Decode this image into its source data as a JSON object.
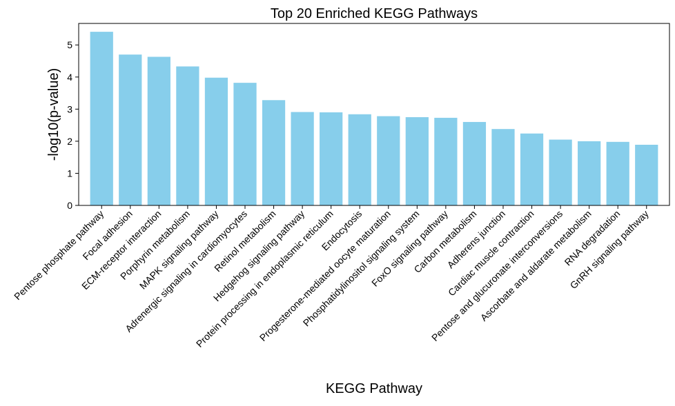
{
  "chart_data": {
    "type": "bar",
    "title": "Top 20 Enriched KEGG Pathways",
    "xlabel": "KEGG Pathway",
    "ylabel": "-log10(p-value)",
    "ylim": [
      0,
      5.67
    ],
    "yticks": [
      0,
      1,
      2,
      3,
      4,
      5
    ],
    "grid": false,
    "bar_color": "#87CEEB",
    "categories": [
      "Pentose phosphate pathway",
      "Focal adhesion",
      "ECM-receptor interaction",
      "Porphyrin metabolism",
      "MAPK signaling pathway",
      "Adrenergic signaling in cardiomyocytes",
      "Retinol metabolism",
      "Hedgehog signaling pathway",
      "Protein processing in endoplasmic reticulum",
      "Endocytosis",
      "Progesterone-mediated oocyte maturation",
      "Phosphatidylinositol signaling system",
      "FoxO signaling pathway",
      "Carbon metabolism",
      "Adherens junction",
      "Cardiac muscle contraction",
      "Pentose and glucuronate interconversions",
      "Ascorbate and aldarate metabolism",
      "RNA degradation",
      "GnRH signaling pathway"
    ],
    "values": [
      5.41,
      4.7,
      4.63,
      4.33,
      3.98,
      3.82,
      3.28,
      2.91,
      2.9,
      2.84,
      2.78,
      2.75,
      2.73,
      2.6,
      2.38,
      2.24,
      2.05,
      2.0,
      1.98,
      1.89
    ]
  }
}
